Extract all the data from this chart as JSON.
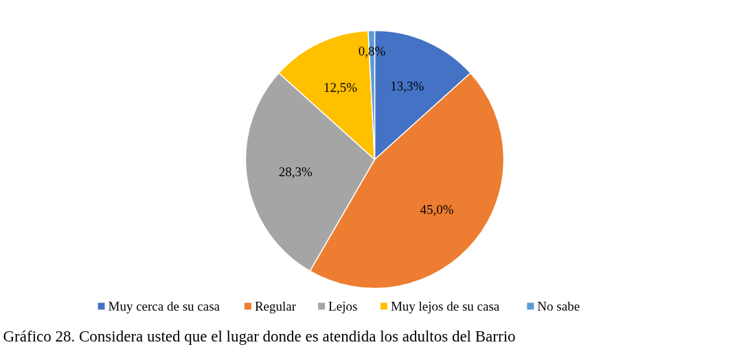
{
  "chart_data": {
    "type": "pie",
    "title": "Gráfico 28. Considera usted que el lugar donde es atendida los adultos del Barrio",
    "categories": [
      "Muy cerca de su casa",
      "Regular",
      "Lejos",
      "Muy lejos de su casa",
      "No sabe"
    ],
    "values": [
      13.3,
      45.0,
      28.3,
      12.5,
      0.8
    ],
    "value_labels": [
      "13,3%",
      "45,0%",
      "28,3%",
      "12,5%",
      "0,8%"
    ],
    "colors": [
      "#4472c4",
      "#ed7d31",
      "#a5a5a5",
      "#ffc000",
      "#5b9bd5"
    ],
    "legend": "bottom"
  }
}
